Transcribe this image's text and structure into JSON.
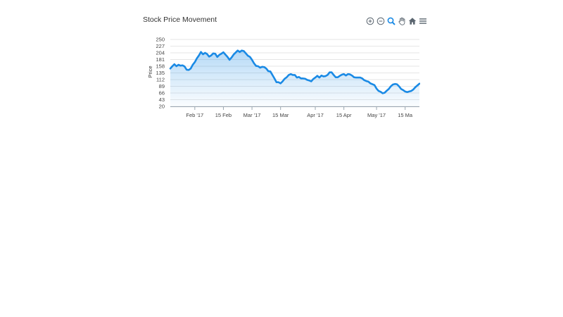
{
  "chart_data": {
    "type": "area",
    "title": "Stock Price Movement",
    "xlabel": "",
    "ylabel": "Price",
    "ylim": [
      20,
      250
    ],
    "yticks": [
      250,
      227,
      204,
      181,
      158,
      135,
      112,
      89,
      66,
      43,
      20
    ],
    "xlim": [
      "2017-01-20",
      "2017-05-22"
    ],
    "xticks": [
      {
        "date": "2017-02-01",
        "label": "Feb '17"
      },
      {
        "date": "2017-02-15",
        "label": "15 Feb"
      },
      {
        "date": "2017-03-01",
        "label": "Mar '17"
      },
      {
        "date": "2017-03-15",
        "label": "15 Mar"
      },
      {
        "date": "2017-04-01",
        "label": "Apr '17"
      },
      {
        "date": "2017-04-15",
        "label": "15 Apr"
      },
      {
        "date": "2017-05-01",
        "label": "May '17"
      },
      {
        "date": "2017-05-15",
        "label": "15 Ma"
      }
    ],
    "grid": true,
    "colors": {
      "line": "#1a8ae5",
      "fill_top": "#1a8ae5",
      "grid": "#e6e6e6",
      "axis": "#9aa7b1"
    },
    "series": [
      {
        "x": [
          "2017-01-20",
          "2017-01-21",
          "2017-01-22",
          "2017-01-23",
          "2017-01-24",
          "2017-01-25",
          "2017-01-26",
          "2017-01-27",
          "2017-01-28",
          "2017-01-29",
          "2017-01-30",
          "2017-01-31",
          "2017-02-01",
          "2017-02-02",
          "2017-02-03",
          "2017-02-04",
          "2017-02-05",
          "2017-02-06",
          "2017-02-07",
          "2017-02-08",
          "2017-02-09",
          "2017-02-10",
          "2017-02-11",
          "2017-02-12",
          "2017-02-13",
          "2017-02-14",
          "2017-02-15",
          "2017-02-16",
          "2017-02-17",
          "2017-02-18",
          "2017-02-19",
          "2017-02-20",
          "2017-02-21",
          "2017-02-22",
          "2017-02-23",
          "2017-02-24",
          "2017-02-25",
          "2017-02-26",
          "2017-02-27",
          "2017-02-28",
          "2017-03-01",
          "2017-03-02",
          "2017-03-03",
          "2017-03-04",
          "2017-03-05",
          "2017-03-06",
          "2017-03-07",
          "2017-03-08",
          "2017-03-09",
          "2017-03-10",
          "2017-03-11",
          "2017-03-12",
          "2017-03-13",
          "2017-03-14",
          "2017-03-15",
          "2017-03-16",
          "2017-03-17",
          "2017-03-18",
          "2017-03-19",
          "2017-03-20",
          "2017-03-21",
          "2017-03-22",
          "2017-03-23",
          "2017-03-24",
          "2017-03-25",
          "2017-03-26",
          "2017-03-27",
          "2017-03-28",
          "2017-03-29",
          "2017-03-30",
          "2017-03-31",
          "2017-04-01",
          "2017-04-02",
          "2017-04-03",
          "2017-04-04",
          "2017-04-05",
          "2017-04-06",
          "2017-04-07",
          "2017-04-08",
          "2017-04-09",
          "2017-04-10",
          "2017-04-11",
          "2017-04-12",
          "2017-04-13",
          "2017-04-14",
          "2017-04-15",
          "2017-04-16",
          "2017-04-17",
          "2017-04-18",
          "2017-04-19",
          "2017-04-20",
          "2017-04-21",
          "2017-04-22",
          "2017-04-23",
          "2017-04-24",
          "2017-04-25",
          "2017-04-26",
          "2017-04-27",
          "2017-04-28",
          "2017-04-29",
          "2017-04-30",
          "2017-05-01",
          "2017-05-02",
          "2017-05-03",
          "2017-05-04",
          "2017-05-05",
          "2017-05-06",
          "2017-05-07",
          "2017-05-08",
          "2017-05-09",
          "2017-05-10",
          "2017-05-11",
          "2017-05-12",
          "2017-05-13",
          "2017-05-14",
          "2017-05-15",
          "2017-05-16",
          "2017-05-17",
          "2017-05-18",
          "2017-05-19",
          "2017-05-20",
          "2017-05-21",
          "2017-05-22"
        ],
        "y": [
          150,
          158,
          165,
          158,
          163,
          160,
          161,
          157,
          146,
          145,
          150,
          163,
          172,
          185,
          195,
          207,
          199,
          204,
          200,
          191,
          195,
          202,
          201,
          190,
          197,
          201,
          206,
          198,
          190,
          180,
          188,
          198,
          205,
          212,
          207,
          212,
          210,
          202,
          194,
          190,
          180,
          168,
          159,
          158,
          153,
          156,
          155,
          150,
          141,
          140,
          128,
          116,
          103,
          103,
          99,
          106,
          115,
          120,
          128,
          131,
          128,
          128,
          119,
          121,
          116,
          116,
          115,
          111,
          109,
          106,
          114,
          119,
          125,
          119,
          126,
          123,
          124,
          128,
          137,
          137,
          128,
          120,
          120,
          125,
          129,
          131,
          126,
          131,
          130,
          126,
          120,
          119,
          119,
          119,
          116,
          110,
          107,
          105,
          99,
          96,
          93,
          81,
          73,
          70,
          65,
          67,
          74,
          80,
          89,
          95,
          97,
          96,
          89,
          80,
          76,
          71,
          69,
          71,
          73,
          78,
          86,
          92,
          98
        ]
      }
    ]
  }
}
